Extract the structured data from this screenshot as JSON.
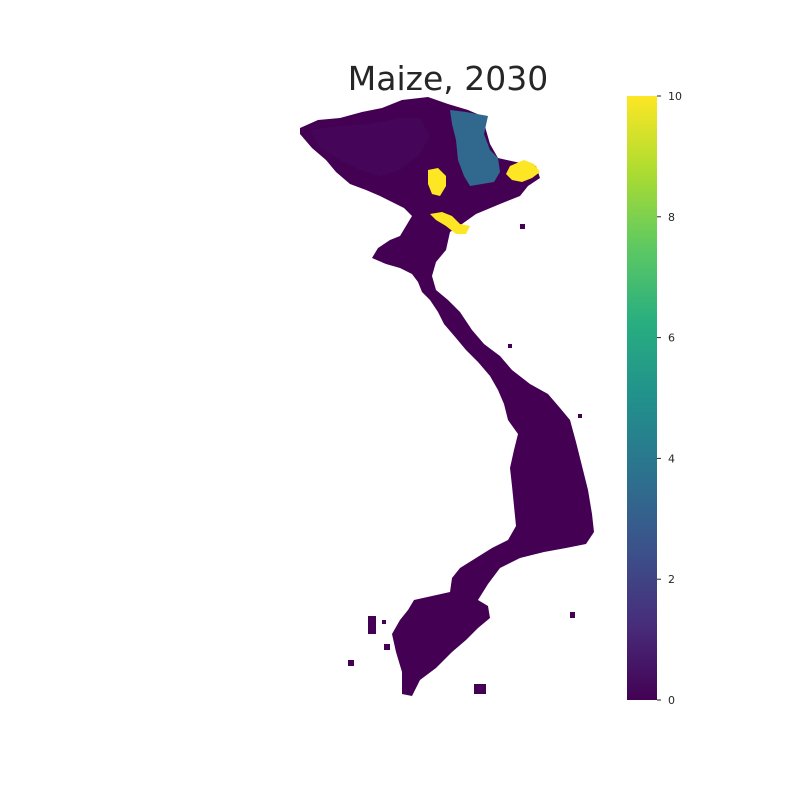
{
  "title": "Maize, 2030",
  "colorbar": {
    "colormap": "viridis",
    "min": 0,
    "max": 10,
    "ticks": [
      0,
      2,
      4,
      6,
      8,
      10
    ],
    "tick_labels": [
      "0",
      "2",
      "4",
      "6",
      "8",
      "10"
    ]
  },
  "colors": {
    "background": "#ffffff",
    "low_value": "#440154",
    "mid_value": "#31688e",
    "high_value": "#fde725",
    "text": "#262626"
  },
  "map_regions": [
    {
      "name": "country-base",
      "value": 0.3
    },
    {
      "name": "northern-highlands",
      "value": 0.2
    },
    {
      "name": "northeast-province",
      "value": 3.4
    },
    {
      "name": "northwest-hotspot",
      "value": 10
    },
    {
      "name": "northeast-coast-hotspot",
      "value": 10
    },
    {
      "name": "delta-hotspot",
      "value": 10
    }
  ]
}
